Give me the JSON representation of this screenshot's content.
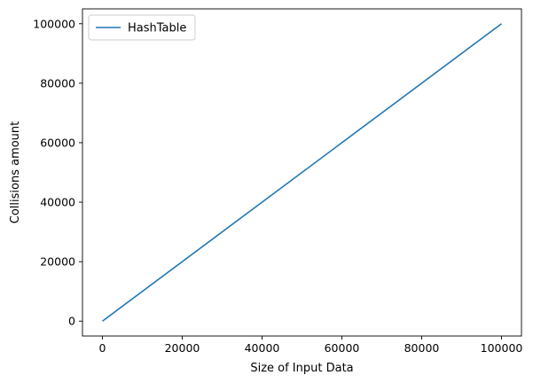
{
  "chart_data": {
    "type": "line",
    "xlabel": "Size of Input Data",
    "ylabel": "Collisions amount",
    "xlim": [
      -5000,
      105000
    ],
    "ylim": [
      -5000,
      105000
    ],
    "xticks": [
      0,
      20000,
      40000,
      60000,
      80000,
      100000
    ],
    "yticks": [
      0,
      20000,
      40000,
      60000,
      80000,
      100000
    ],
    "x_tick_labels": [
      "0",
      "20000",
      "40000",
      "60000",
      "80000",
      "100000"
    ],
    "y_tick_labels": [
      "0",
      "20000",
      "40000",
      "60000",
      "80000",
      "100000"
    ],
    "grid": false,
    "legend_position": "upper-left",
    "series": [
      {
        "name": "HashTable",
        "color": "#1f77b4",
        "x": [
          0,
          100000
        ],
        "y": [
          0,
          100000
        ]
      }
    ]
  }
}
